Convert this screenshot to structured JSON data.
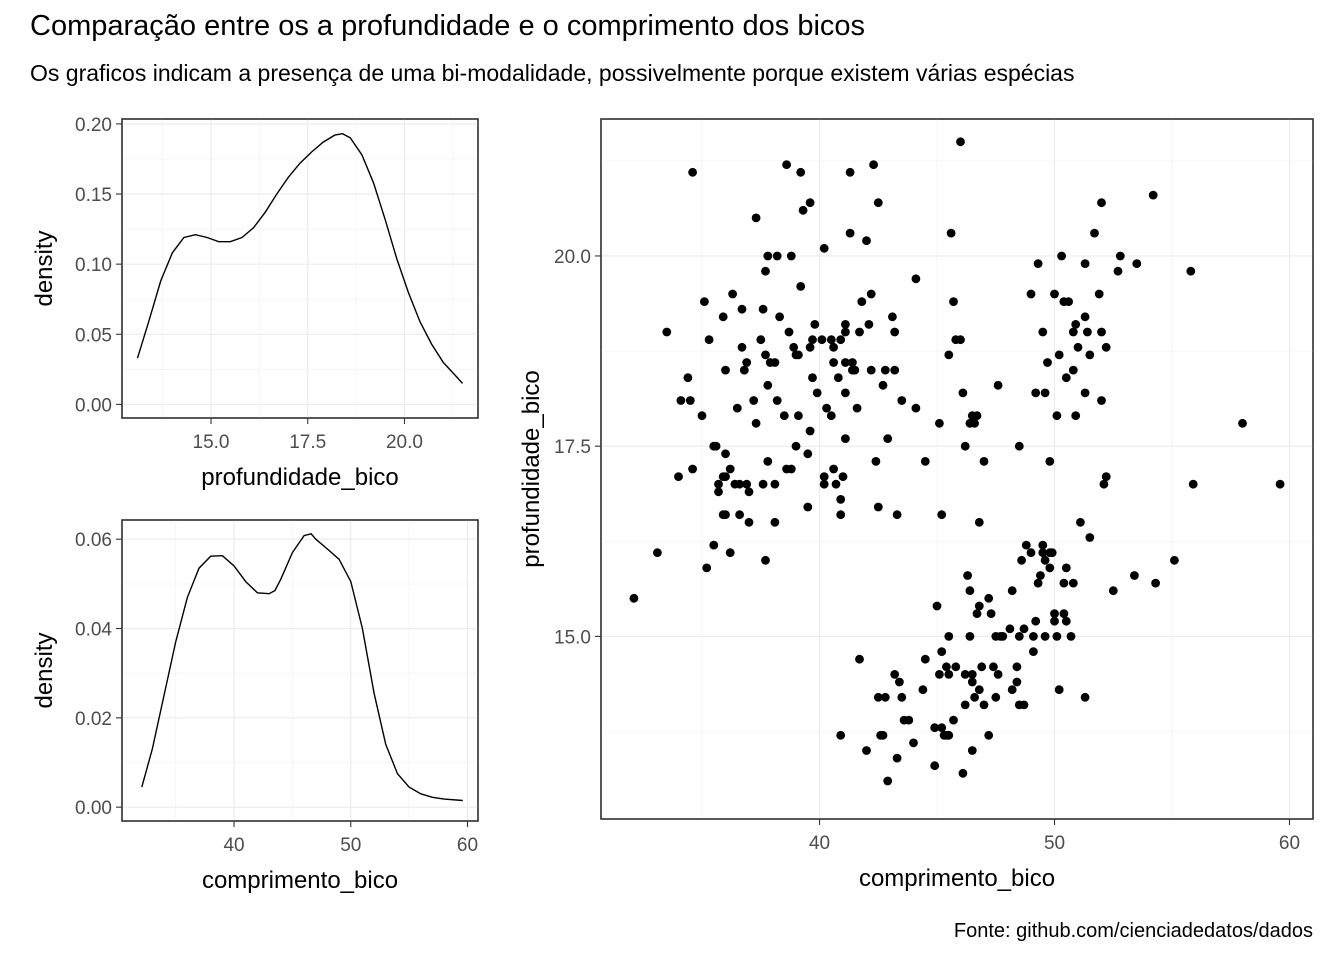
{
  "title": "Comparação entre os a profundidade e o comprimento dos bicos",
  "subtitle": "Os  graficos indicam a presença de uma bi-modalidade, possivelmente porque existem várias espécias",
  "caption": "Fonte: github.com/cienciadedatos/dados",
  "chart_data": [
    {
      "type": "line",
      "name": "densidade-profundidade",
      "xlabel": "profundidade_bico",
      "ylabel": "density",
      "xlim": [
        12.7,
        21.9
      ],
      "ylim": [
        -0.0097,
        0.2035
      ],
      "xticks": [
        15.0,
        17.5,
        20.0
      ],
      "xtick_labels": [
        "15.0",
        "17.5",
        "20.0"
      ],
      "yticks": [
        0.0,
        0.05,
        0.1,
        0.15,
        0.2
      ],
      "ytick_labels": [
        "0.00",
        "0.05",
        "0.10",
        "0.15",
        "0.20"
      ],
      "grid": true,
      "x": [
        13.1,
        13.4,
        13.7,
        14.0,
        14.3,
        14.6,
        14.9,
        15.2,
        15.5,
        15.8,
        16.1,
        16.4,
        16.7,
        17.0,
        17.3,
        17.6,
        17.9,
        18.2,
        18.4,
        18.6,
        18.9,
        19.2,
        19.5,
        19.8,
        20.1,
        20.4,
        20.7,
        21.0,
        21.3,
        21.5
      ],
      "y": [
        0.033,
        0.06,
        0.088,
        0.108,
        0.119,
        0.121,
        0.119,
        0.116,
        0.116,
        0.119,
        0.126,
        0.137,
        0.15,
        0.162,
        0.172,
        0.18,
        0.187,
        0.192,
        0.193,
        0.19,
        0.178,
        0.158,
        0.132,
        0.104,
        0.08,
        0.059,
        0.043,
        0.03,
        0.021,
        0.015
      ]
    },
    {
      "type": "line",
      "name": "densidade-comprimento",
      "xlabel": "comprimento_bico",
      "ylabel": "density",
      "xlim": [
        30.4,
        60.9
      ],
      "ylim": [
        -0.0031,
        0.0643
      ],
      "xticks": [
        40,
        50,
        60
      ],
      "xtick_labels": [
        "40",
        "50",
        "60"
      ],
      "yticks": [
        0.0,
        0.02,
        0.04,
        0.06
      ],
      "ytick_labels": [
        "0.00",
        "0.02",
        "0.04",
        "0.06"
      ],
      "grid": true,
      "x": [
        32.1,
        33.0,
        34.0,
        35.0,
        36.0,
        37.0,
        38.0,
        39.0,
        40.0,
        41.0,
        42.0,
        43.0,
        43.5,
        44.0,
        45.0,
        46.0,
        46.6,
        47.0,
        48.0,
        49.0,
        50.0,
        51.0,
        52.0,
        53.0,
        54.0,
        55.0,
        56.0,
        57.0,
        58.0,
        59.6
      ],
      "y": [
        0.0045,
        0.013,
        0.025,
        0.037,
        0.047,
        0.0535,
        0.0562,
        0.0563,
        0.054,
        0.0505,
        0.048,
        0.0478,
        0.0485,
        0.051,
        0.057,
        0.0608,
        0.0612,
        0.06,
        0.0578,
        0.0555,
        0.0505,
        0.04,
        0.0255,
        0.014,
        0.0075,
        0.0045,
        0.003,
        0.0022,
        0.0018,
        0.0015
      ]
    },
    {
      "type": "scatter",
      "name": "dispersao",
      "xlabel": "comprimento_bico",
      "ylabel": "profundidade_bico",
      "xlim": [
        30.7,
        61.0
      ],
      "ylim": [
        12.6,
        21.8
      ],
      "xticks": [
        40,
        50,
        60
      ],
      "xtick_labels": [
        "40",
        "50",
        "60"
      ],
      "yticks": [
        15.0,
        17.5,
        20.0
      ],
      "ytick_labels": [
        "15.0",
        "17.5",
        "20.0"
      ],
      "grid": true,
      "points": [
        [
          32.1,
          15.5
        ],
        [
          33.1,
          16.1
        ],
        [
          33.5,
          19.0
        ],
        [
          34.0,
          17.1
        ],
        [
          34.1,
          18.1
        ],
        [
          34.4,
          18.4
        ],
        [
          34.5,
          18.1
        ],
        [
          34.6,
          21.1
        ],
        [
          34.6,
          17.2
        ],
        [
          35.0,
          17.9
        ],
        [
          35.1,
          19.4
        ],
        [
          35.2,
          15.9
        ],
        [
          35.3,
          18.9
        ],
        [
          35.5,
          16.2
        ],
        [
          35.5,
          17.5
        ],
        [
          35.6,
          17.5
        ],
        [
          35.7,
          16.9
        ],
        [
          35.7,
          17.0
        ],
        [
          35.9,
          16.6
        ],
        [
          35.9,
          19.2
        ],
        [
          35.9,
          17.1
        ],
        [
          36.0,
          16.6
        ],
        [
          36.0,
          17.1
        ],
        [
          36.0,
          18.5
        ],
        [
          36.0,
          17.4
        ],
        [
          36.2,
          17.2
        ],
        [
          36.2,
          16.1
        ],
        [
          36.3,
          19.5
        ],
        [
          36.4,
          17.0
        ],
        [
          36.5,
          18.0
        ],
        [
          36.6,
          16.6
        ],
        [
          36.6,
          17.0
        ],
        [
          36.7,
          19.3
        ],
        [
          36.7,
          18.8
        ],
        [
          36.8,
          18.5
        ],
        [
          36.9,
          18.6
        ],
        [
          36.9,
          17.0
        ],
        [
          37.0,
          16.5
        ],
        [
          37.0,
          16.9
        ],
        [
          37.2,
          18.1
        ],
        [
          37.3,
          17.8
        ],
        [
          37.3,
          20.5
        ],
        [
          37.5,
          18.9
        ],
        [
          37.6,
          19.3
        ],
        [
          37.6,
          17.0
        ],
        [
          37.7,
          18.7
        ],
        [
          37.7,
          19.8
        ],
        [
          37.7,
          16.0
        ],
        [
          37.8,
          18.3
        ],
        [
          37.8,
          20.0
        ],
        [
          37.8,
          17.3
        ],
        [
          37.9,
          18.6
        ],
        [
          38.1,
          18.6
        ],
        [
          38.1,
          17.0
        ],
        [
          38.1,
          16.5
        ],
        [
          38.2,
          18.1
        ],
        [
          38.2,
          20.0
        ],
        [
          38.3,
          19.2
        ],
        [
          38.5,
          17.9
        ],
        [
          38.6,
          21.2
        ],
        [
          38.6,
          17.2
        ],
        [
          38.7,
          19.0
        ],
        [
          38.8,
          17.2
        ],
        [
          38.8,
          20.0
        ],
        [
          38.9,
          18.8
        ],
        [
          39.0,
          18.7
        ],
        [
          39.0,
          17.5
        ],
        [
          39.1,
          18.7
        ],
        [
          39.1,
          17.9
        ],
        [
          39.2,
          19.6
        ],
        [
          39.2,
          21.1
        ],
        [
          39.3,
          20.6
        ],
        [
          39.5,
          17.4
        ],
        [
          39.5,
          16.7
        ],
        [
          39.6,
          17.7
        ],
        [
          39.6,
          18.8
        ],
        [
          39.6,
          20.7
        ],
        [
          39.7,
          18.4
        ],
        [
          39.7,
          18.9
        ],
        [
          39.8,
          19.1
        ],
        [
          39.9,
          18.2
        ],
        [
          40.1,
          18.9
        ],
        [
          40.2,
          20.1
        ],
        [
          40.2,
          17.0
        ],
        [
          40.2,
          17.1
        ],
        [
          40.3,
          18.0
        ],
        [
          40.5,
          18.9
        ],
        [
          40.5,
          17.9
        ],
        [
          40.6,
          18.8
        ],
        [
          40.6,
          17.2
        ],
        [
          40.6,
          18.6
        ],
        [
          40.7,
          17.0
        ],
        [
          40.8,
          18.4
        ],
        [
          40.9,
          18.9
        ],
        [
          40.9,
          16.6
        ],
        [
          40.9,
          16.8
        ],
        [
          41.0,
          17.1
        ],
        [
          41.1,
          19.0
        ],
        [
          41.1,
          18.6
        ],
        [
          41.1,
          18.2
        ],
        [
          41.1,
          19.1
        ],
        [
          41.1,
          17.6
        ],
        [
          41.3,
          21.1
        ],
        [
          41.3,
          20.3
        ],
        [
          41.4,
          18.5
        ],
        [
          41.4,
          18.6
        ],
        [
          41.5,
          18.5
        ],
        [
          41.6,
          18.0
        ],
        [
          41.7,
          19.0
        ],
        [
          41.8,
          19.4
        ],
        [
          42.0,
          20.2
        ],
        [
          42.1,
          19.1
        ],
        [
          42.2,
          19.5
        ],
        [
          42.2,
          18.5
        ],
        [
          42.3,
          21.2
        ],
        [
          42.4,
          17.3
        ],
        [
          42.5,
          20.7
        ],
        [
          42.5,
          16.7
        ],
        [
          42.7,
          18.3
        ],
        [
          42.8,
          18.5
        ],
        [
          42.9,
          17.6
        ],
        [
          43.1,
          19.2
        ],
        [
          43.2,
          19.0
        ],
        [
          43.2,
          18.5
        ],
        [
          43.3,
          16.6
        ],
        [
          43.5,
          18.1
        ],
        [
          44.1,
          19.7
        ],
        [
          44.1,
          18.0
        ],
        [
          44.5,
          17.3
        ],
        [
          45.1,
          17.8
        ],
        [
          45.2,
          16.6
        ],
        [
          45.5,
          18.7
        ],
        [
          45.6,
          20.3
        ],
        [
          45.7,
          19.4
        ],
        [
          45.8,
          18.9
        ],
        [
          46.0,
          18.9
        ],
        [
          46.0,
          21.5
        ],
        [
          46.1,
          18.2
        ],
        [
          46.2,
          17.5
        ],
        [
          46.4,
          17.8
        ],
        [
          46.5,
          17.9
        ],
        [
          46.6,
          17.8
        ],
        [
          46.7,
          17.9
        ],
        [
          46.8,
          16.5
        ],
        [
          47.0,
          17.3
        ],
        [
          47.6,
          18.3
        ],
        [
          48.5,
          17.5
        ],
        [
          49.0,
          19.5
        ],
        [
          49.2,
          18.2
        ],
        [
          49.3,
          19.9
        ],
        [
          49.5,
          19.0
        ],
        [
          49.6,
          18.2
        ],
        [
          49.7,
          18.6
        ],
        [
          49.8,
          17.3
        ],
        [
          50.0,
          19.5
        ],
        [
          50.1,
          17.9
        ],
        [
          50.2,
          18.7
        ],
        [
          50.3,
          20.0
        ],
        [
          50.4,
          19.4
        ],
        [
          50.5,
          18.4
        ],
        [
          50.6,
          19.4
        ],
        [
          50.8,
          18.5
        ],
        [
          50.8,
          19.0
        ],
        [
          50.9,
          17.9
        ],
        [
          50.9,
          19.1
        ],
        [
          51.0,
          18.8
        ],
        [
          51.3,
          18.2
        ],
        [
          51.3,
          19.2
        ],
        [
          51.3,
          19.9
        ],
        [
          51.4,
          19.0
        ],
        [
          51.5,
          18.7
        ],
        [
          51.7,
          20.3
        ],
        [
          51.9,
          19.5
        ],
        [
          52.0,
          18.1
        ],
        [
          52.0,
          19.0
        ],
        [
          52.0,
          20.7
        ],
        [
          52.2,
          18.8
        ],
        [
          52.7,
          19.8
        ],
        [
          52.8,
          20.0
        ],
        [
          53.5,
          19.9
        ],
        [
          54.2,
          20.8
        ],
        [
          55.8,
          19.8
        ],
        [
          40.9,
          13.7
        ],
        [
          41.7,
          14.7
        ],
        [
          42.0,
          13.5
        ],
        [
          42.5,
          14.2
        ],
        [
          42.6,
          13.7
        ],
        [
          42.7,
          13.7
        ],
        [
          42.8,
          14.2
        ],
        [
          42.9,
          13.1
        ],
        [
          43.2,
          14.5
        ],
        [
          43.3,
          13.4
        ],
        [
          43.4,
          14.4
        ],
        [
          43.5,
          14.2
        ],
        [
          43.6,
          13.9
        ],
        [
          43.8,
          13.9
        ],
        [
          44.0,
          13.6
        ],
        [
          44.4,
          14.3
        ],
        [
          44.5,
          14.7
        ],
        [
          44.9,
          13.3
        ],
        [
          44.9,
          13.8
        ],
        [
          45.0,
          15.4
        ],
        [
          45.1,
          14.5
        ],
        [
          45.2,
          14.8
        ],
        [
          45.2,
          13.8
        ],
        [
          45.3,
          13.7
        ],
        [
          45.4,
          14.6
        ],
        [
          45.4,
          13.7
        ],
        [
          45.5,
          13.7
        ],
        [
          45.5,
          14.5
        ],
        [
          45.5,
          15.0
        ],
        [
          45.7,
          13.9
        ],
        [
          45.8,
          14.6
        ],
        [
          46.1,
          13.2
        ],
        [
          46.2,
          14.5
        ],
        [
          46.2,
          14.1
        ],
        [
          46.3,
          15.8
        ],
        [
          46.4,
          15.0
        ],
        [
          46.4,
          15.6
        ],
        [
          46.5,
          14.5
        ],
        [
          46.5,
          13.5
        ],
        [
          46.5,
          14.4
        ],
        [
          46.6,
          14.2
        ],
        [
          46.7,
          15.3
        ],
        [
          46.8,
          14.3
        ],
        [
          46.8,
          15.4
        ],
        [
          46.9,
          14.6
        ],
        [
          47.0,
          14.1
        ],
        [
          47.2,
          15.5
        ],
        [
          47.2,
          13.7
        ],
        [
          47.3,
          15.3
        ],
        [
          47.4,
          14.6
        ],
        [
          47.5,
          14.2
        ],
        [
          47.5,
          15.0
        ],
        [
          47.6,
          14.5
        ],
        [
          47.7,
          15.0
        ],
        [
          47.8,
          15.0
        ],
        [
          48.1,
          15.1
        ],
        [
          48.2,
          14.3
        ],
        [
          48.2,
          15.6
        ],
        [
          48.4,
          14.6
        ],
        [
          48.4,
          14.4
        ],
        [
          48.5,
          14.1
        ],
        [
          48.5,
          15.0
        ],
        [
          48.6,
          16.0
        ],
        [
          48.7,
          14.1
        ],
        [
          48.7,
          15.1
        ],
        [
          48.8,
          16.2
        ],
        [
          49.0,
          16.1
        ],
        [
          49.1,
          14.8
        ],
        [
          49.1,
          15.0
        ],
        [
          49.2,
          15.2
        ],
        [
          49.3,
          15.7
        ],
        [
          49.4,
          15.8
        ],
        [
          49.5,
          16.1
        ],
        [
          49.5,
          16.2
        ],
        [
          49.6,
          15.0
        ],
        [
          49.6,
          16.0
        ],
        [
          49.8,
          15.9
        ],
        [
          49.8,
          16.1
        ],
        [
          49.9,
          16.1
        ],
        [
          50.0,
          15.2
        ],
        [
          50.0,
          15.3
        ],
        [
          50.1,
          15.0
        ],
        [
          50.2,
          14.3
        ],
        [
          50.4,
          15.3
        ],
        [
          50.4,
          15.7
        ],
        [
          50.5,
          15.9
        ],
        [
          50.5,
          15.2
        ],
        [
          50.7,
          15.0
        ],
        [
          50.8,
          15.7
        ],
        [
          51.1,
          16.5
        ],
        [
          51.3,
          14.2
        ],
        [
          51.5,
          16.3
        ],
        [
          52.1,
          17.0
        ],
        [
          52.2,
          17.1
        ],
        [
          52.5,
          15.6
        ],
        [
          53.4,
          15.8
        ],
        [
          54.3,
          15.7
        ],
        [
          55.1,
          16.0
        ],
        [
          55.9,
          17.0
        ],
        [
          58.0,
          17.8
        ],
        [
          59.6,
          17.0
        ]
      ]
    }
  ]
}
